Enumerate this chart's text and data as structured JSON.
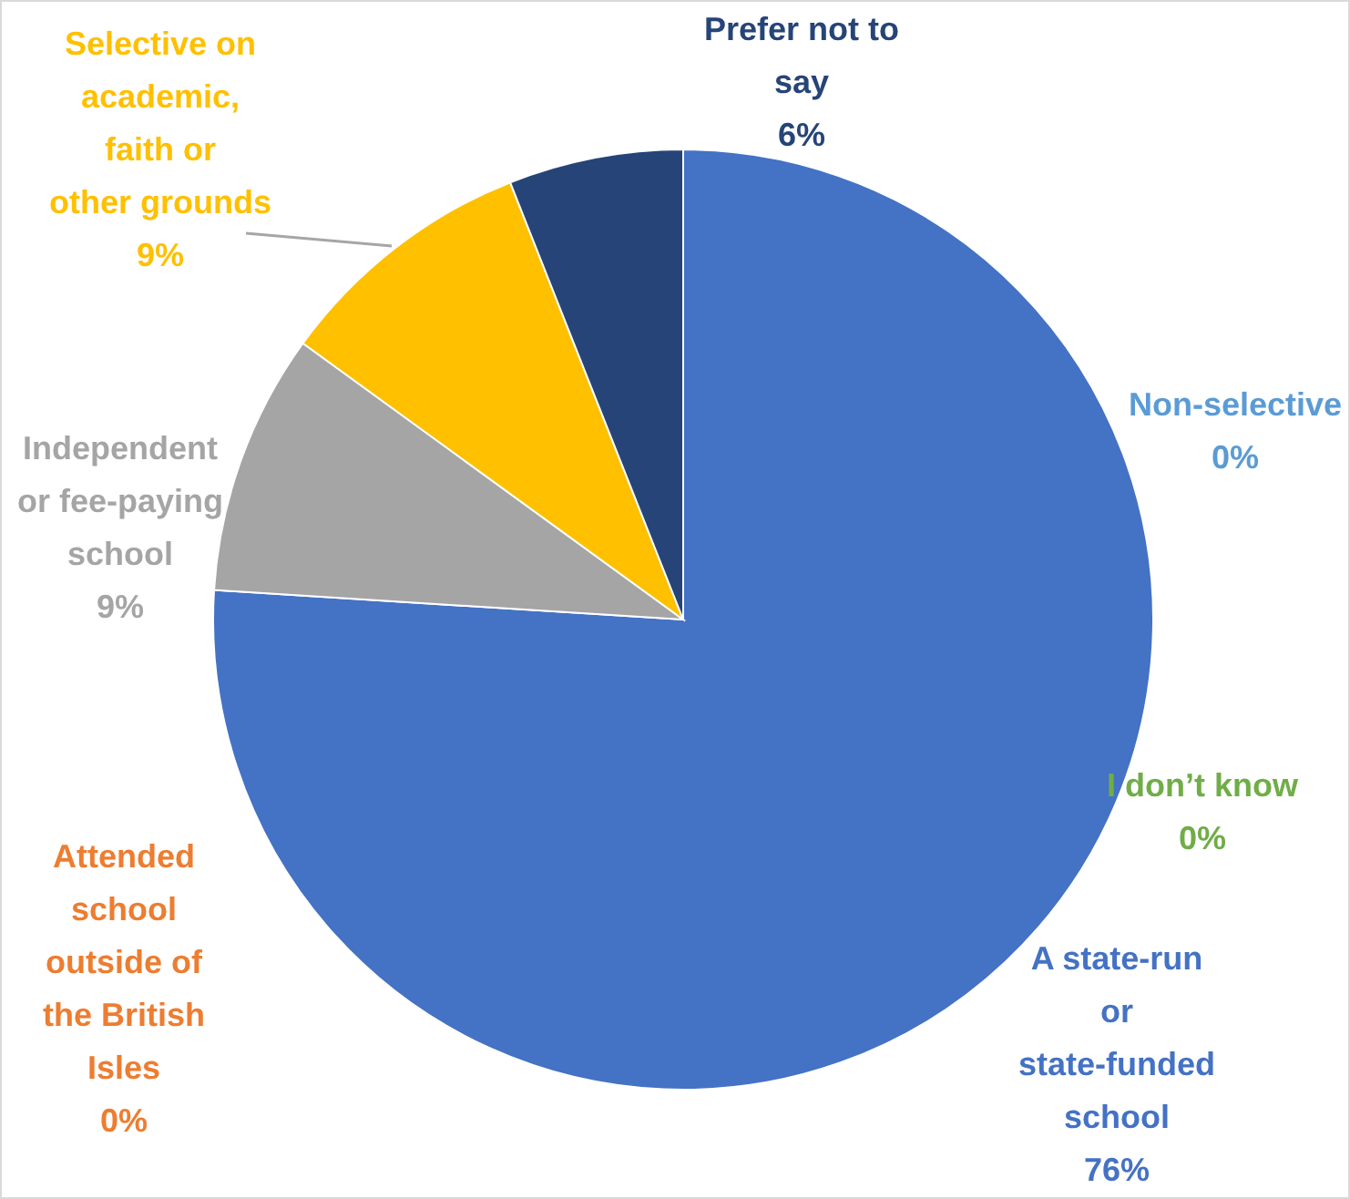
{
  "chart_data": {
    "type": "pie",
    "categories": [
      "A state-run or state-funded school",
      "Non-selective",
      "I don’t know",
      "Attended school outside of the British Isles",
      "Independent or fee-paying school",
      "Selective on academic, faith or other grounds",
      "Prefer not to say"
    ],
    "values": [
      76,
      0,
      0,
      0,
      9,
      9,
      6
    ],
    "colors": [
      "#4472c4",
      "#5b9bd5",
      "#70ad47",
      "#ed7d31",
      "#a5a5a5",
      "#ffc000",
      "#264478"
    ],
    "value_labels": [
      "76%",
      "0%",
      "0%",
      "0%",
      "9%",
      "9%",
      "6%"
    ]
  }
}
